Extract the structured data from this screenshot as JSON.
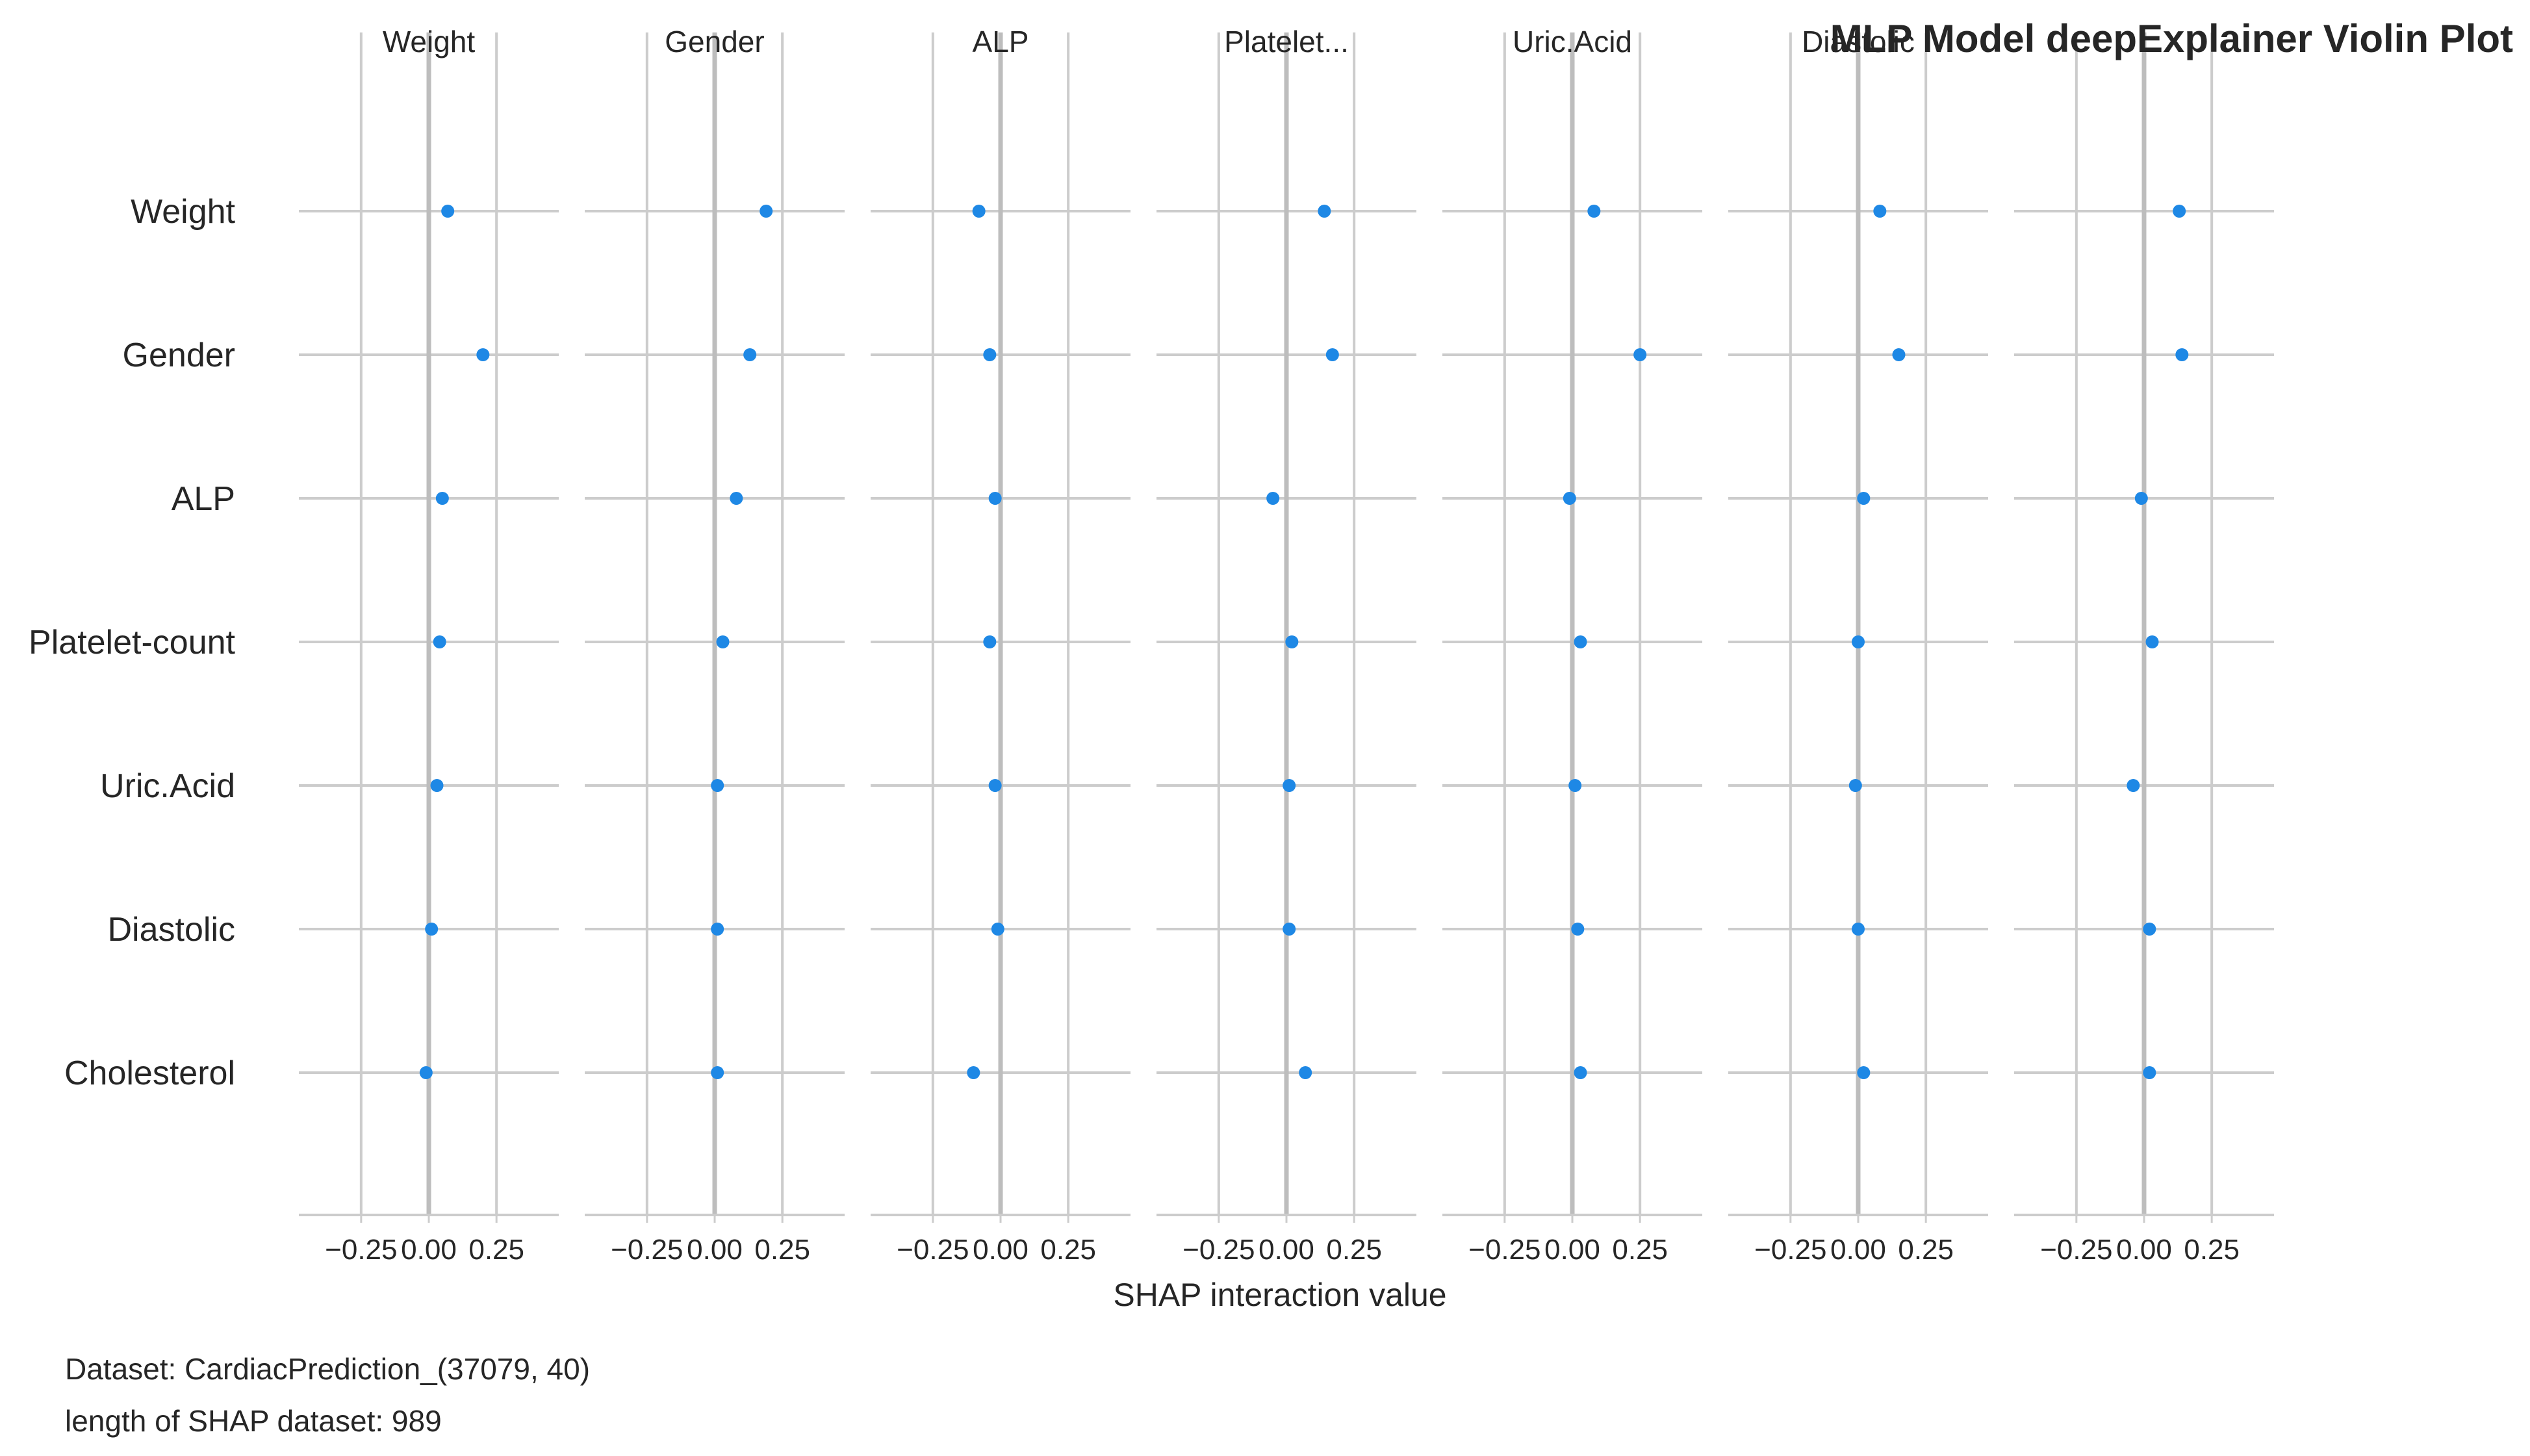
{
  "chart_data": {
    "type": "scatter",
    "title": "MLP Model deepExplainer Violin Plot",
    "overlay_title": "Diastolic",
    "xlabel": "SHAP interaction value",
    "xlim": [
      -0.48,
      0.48
    ],
    "x_ticks": [
      -0.25,
      0.0,
      0.25
    ],
    "x_tick_labels": [
      "−0.25",
      "0.00",
      "0.25"
    ],
    "row_features": [
      "Weight",
      "Gender",
      "ALP",
      "Platelet-count",
      "Uric.Acid",
      "Diastolic",
      "Cholesterol"
    ],
    "panels": [
      {
        "title": "Weight",
        "values": [
          0.07,
          0.2,
          0.05,
          0.04,
          0.03,
          0.01,
          -0.01
        ]
      },
      {
        "title": "Gender",
        "values": [
          0.19,
          0.13,
          0.08,
          0.03,
          0.01,
          0.01,
          0.01
        ]
      },
      {
        "title": "ALP",
        "values": [
          -0.08,
          -0.04,
          -0.02,
          -0.04,
          -0.02,
          -0.01,
          -0.1
        ]
      },
      {
        "title": "Platelet...",
        "values": [
          0.14,
          0.17,
          -0.05,
          0.02,
          0.01,
          0.01,
          0.07
        ]
      },
      {
        "title": "Uric.Acid",
        "values": [
          0.08,
          0.25,
          -0.01,
          0.03,
          0.01,
          0.02,
          0.03
        ]
      },
      {
        "title": "",
        "values": [
          0.08,
          0.15,
          0.02,
          0.0,
          -0.01,
          0.0,
          0.02
        ]
      },
      {
        "title": "",
        "values": [
          0.13,
          0.14,
          -0.01,
          0.03,
          -0.04,
          0.02,
          0.02
        ]
      }
    ],
    "grid": true,
    "point_color": "#1E88E5"
  },
  "footer": {
    "dataset": "Dataset:  CardiacPrediction_(37079, 40)",
    "shap_length": "length of SHAP dataset: 989"
  }
}
